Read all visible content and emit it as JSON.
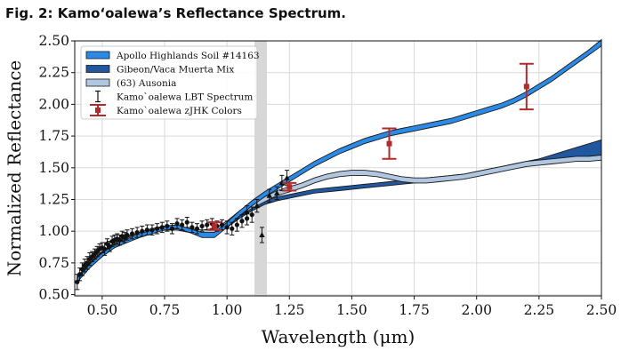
{
  "figure_title": "Fig. 2: Kamoʻoalewa’s Reflectance Spectrum.",
  "chart_data": {
    "type": "line",
    "xlabel": "Wavelength (μm)",
    "ylabel": "Normalized Reflectance",
    "xlim": [
      0.39,
      2.5
    ],
    "ylim": [
      0.49,
      2.5
    ],
    "xticks": [
      "0.50",
      "0.75",
      "1.00",
      "1.25",
      "1.50",
      "1.75",
      "2.00",
      "2.25",
      "2.50"
    ],
    "yticks": [
      "0.50",
      "0.75",
      "1.00",
      "1.25",
      "1.50",
      "1.75",
      "2.00",
      "2.25",
      "2.50"
    ],
    "grid": true,
    "legend_position": "top-left",
    "shaded_band": [
      1.11,
      1.16
    ],
    "colors": {
      "apollo": "#2b8ae6",
      "gibeon": "#20579e",
      "ausonia": "#b1c6df",
      "lbt": "#111111",
      "zjhk": "#b22a2a",
      "band": "#d7d7d7",
      "grid": "#d9d9d9"
    },
    "series": [
      {
        "name": "Apollo Highlands Soil #14163",
        "kind": "band",
        "x": [
          0.4,
          0.45,
          0.5,
          0.55,
          0.6,
          0.65,
          0.7,
          0.75,
          0.8,
          0.85,
          0.9,
          0.95,
          1.0,
          1.05,
          1.1,
          1.15,
          1.2,
          1.25,
          1.3,
          1.35,
          1.4,
          1.45,
          1.5,
          1.55,
          1.6,
          1.65,
          1.7,
          1.75,
          1.8,
          1.85,
          1.9,
          1.95,
          2.0,
          2.05,
          2.1,
          2.15,
          2.2,
          2.25,
          2.3,
          2.35,
          2.4,
          2.45,
          2.5
        ],
        "lower": [
          0.6,
          0.71,
          0.8,
          0.87,
          0.91,
          0.95,
          0.98,
          1.01,
          1.02,
          0.99,
          0.95,
          0.95,
          1.03,
          1.12,
          1.2,
          1.27,
          1.33,
          1.39,
          1.45,
          1.51,
          1.56,
          1.61,
          1.65,
          1.69,
          1.72,
          1.75,
          1.77,
          1.79,
          1.81,
          1.83,
          1.85,
          1.88,
          1.91,
          1.94,
          1.97,
          2.01,
          2.06,
          2.12,
          2.18,
          2.25,
          2.32,
          2.39,
          2.46
        ],
        "upper": [
          0.63,
          0.74,
          0.83,
          0.9,
          0.94,
          0.98,
          1.01,
          1.04,
          1.05,
          1.02,
          0.99,
          0.99,
          1.07,
          1.16,
          1.24,
          1.31,
          1.37,
          1.43,
          1.49,
          1.55,
          1.6,
          1.65,
          1.69,
          1.73,
          1.76,
          1.79,
          1.81,
          1.83,
          1.85,
          1.87,
          1.89,
          1.92,
          1.95,
          1.98,
          2.01,
          2.05,
          2.1,
          2.16,
          2.22,
          2.29,
          2.36,
          2.43,
          2.51
        ]
      },
      {
        "name": "Gibeon/Vaca Muerta Mix",
        "kind": "band",
        "x": [
          0.4,
          0.45,
          0.5,
          0.55,
          0.6,
          0.65,
          0.7,
          0.75,
          0.8,
          0.85,
          0.9,
          0.95,
          1.0,
          1.05,
          1.1,
          1.15,
          1.2,
          1.25,
          1.3,
          1.35,
          1.4,
          1.45,
          1.5,
          1.55,
          1.6,
          1.65,
          1.7,
          1.75,
          1.8,
          1.85,
          1.9,
          1.95,
          2.0,
          2.05,
          2.1,
          2.15,
          2.2,
          2.25,
          2.3,
          2.35,
          2.4,
          2.45,
          2.5
        ],
        "lower": [
          0.61,
          0.72,
          0.81,
          0.88,
          0.93,
          0.96,
          0.99,
          1.01,
          1.01,
          0.99,
          0.97,
          0.98,
          1.03,
          1.1,
          1.16,
          1.21,
          1.24,
          1.26,
          1.28,
          1.3,
          1.31,
          1.32,
          1.33,
          1.34,
          1.35,
          1.36,
          1.37,
          1.38,
          1.39,
          1.4,
          1.41,
          1.42,
          1.44,
          1.46,
          1.48,
          1.5,
          1.52,
          1.54,
          1.56,
          1.57,
          1.58,
          1.59,
          1.6
        ],
        "upper": [
          0.64,
          0.75,
          0.84,
          0.91,
          0.96,
          0.99,
          1.02,
          1.04,
          1.04,
          1.02,
          1.0,
          1.01,
          1.06,
          1.13,
          1.19,
          1.24,
          1.27,
          1.29,
          1.31,
          1.33,
          1.34,
          1.35,
          1.36,
          1.37,
          1.38,
          1.39,
          1.4,
          1.41,
          1.42,
          1.43,
          1.44,
          1.45,
          1.47,
          1.49,
          1.51,
          1.53,
          1.55,
          1.57,
          1.6,
          1.63,
          1.66,
          1.69,
          1.72
        ]
      },
      {
        "name": "(63) Ausonia",
        "kind": "band",
        "x": [
          0.4,
          0.45,
          0.5,
          0.55,
          0.6,
          0.65,
          0.7,
          0.75,
          0.8,
          0.85,
          0.9,
          0.95,
          1.0,
          1.05,
          1.1,
          1.15,
          1.2,
          1.25,
          1.3,
          1.35,
          1.4,
          1.45,
          1.5,
          1.55,
          1.6,
          1.65,
          1.7,
          1.75,
          1.8,
          1.85,
          1.9,
          1.95,
          2.0,
          2.05,
          2.1,
          2.15,
          2.2,
          2.25,
          2.3,
          2.35,
          2.4,
          2.45,
          2.5
        ],
        "lower": [
          0.6,
          0.71,
          0.8,
          0.88,
          0.92,
          0.96,
          0.99,
          1.01,
          1.01,
          0.99,
          0.98,
          0.99,
          1.04,
          1.12,
          1.18,
          1.23,
          1.28,
          1.31,
          1.34,
          1.38,
          1.41,
          1.43,
          1.44,
          1.44,
          1.43,
          1.41,
          1.39,
          1.38,
          1.38,
          1.39,
          1.4,
          1.41,
          1.43,
          1.45,
          1.47,
          1.49,
          1.51,
          1.52,
          1.53,
          1.54,
          1.55,
          1.55,
          1.56
        ],
        "upper": [
          0.63,
          0.74,
          0.83,
          0.91,
          0.95,
          0.99,
          1.02,
          1.04,
          1.04,
          1.02,
          1.01,
          1.02,
          1.08,
          1.16,
          1.22,
          1.27,
          1.32,
          1.35,
          1.38,
          1.42,
          1.45,
          1.47,
          1.48,
          1.48,
          1.47,
          1.45,
          1.43,
          1.42,
          1.42,
          1.43,
          1.44,
          1.45,
          1.47,
          1.49,
          1.51,
          1.53,
          1.55,
          1.56,
          1.57,
          1.58,
          1.59,
          1.59,
          1.6
        ]
      },
      {
        "name": "Kamo`oalewa LBT Spectrum",
        "kind": "points",
        "x": [
          0.4,
          0.41,
          0.42,
          0.43,
          0.44,
          0.45,
          0.46,
          0.47,
          0.48,
          0.49,
          0.5,
          0.51,
          0.52,
          0.53,
          0.54,
          0.55,
          0.56,
          0.57,
          0.58,
          0.59,
          0.6,
          0.62,
          0.64,
          0.66,
          0.68,
          0.7,
          0.72,
          0.74,
          0.76,
          0.78,
          0.8,
          0.82,
          0.84,
          0.86,
          0.88,
          0.9,
          0.92,
          0.94,
          0.96,
          0.98,
          1.0,
          1.02,
          1.04,
          1.06,
          1.08,
          1.1
        ],
        "y": [
          0.6,
          0.66,
          0.7,
          0.73,
          0.75,
          0.78,
          0.8,
          0.82,
          0.84,
          0.86,
          0.87,
          0.86,
          0.9,
          0.88,
          0.92,
          0.93,
          0.94,
          0.93,
          0.96,
          0.95,
          0.97,
          0.98,
          0.99,
          1.0,
          1.01,
          1.01,
          1.02,
          1.03,
          1.04,
          1.02,
          1.06,
          1.05,
          1.07,
          1.03,
          1.02,
          1.04,
          1.05,
          1.06,
          1.04,
          1.05,
          1.03,
          1.02,
          1.05,
          1.08,
          1.1,
          1.13
        ],
        "err": [
          0.06,
          0.05,
          0.05,
          0.05,
          0.05,
          0.05,
          0.04,
          0.04,
          0.04,
          0.04,
          0.04,
          0.05,
          0.04,
          0.04,
          0.04,
          0.04,
          0.04,
          0.04,
          0.04,
          0.04,
          0.04,
          0.04,
          0.04,
          0.04,
          0.04,
          0.04,
          0.04,
          0.04,
          0.04,
          0.04,
          0.04,
          0.04,
          0.04,
          0.04,
          0.04,
          0.04,
          0.04,
          0.04,
          0.04,
          0.04,
          0.05,
          0.05,
          0.05,
          0.05,
          0.05,
          0.06
        ]
      },
      {
        "name": "Kamo`oalewa LBT Spectrum (NIR)",
        "kind": "triangles",
        "x": [
          1.08,
          1.12,
          1.14,
          1.17,
          1.2,
          1.22,
          1.24
        ],
        "y": [
          1.15,
          1.2,
          0.97,
          1.28,
          1.3,
          1.38,
          1.42
        ],
        "err": [
          0.05,
          0.05,
          0.06,
          0.05,
          0.05,
          0.06,
          0.06
        ]
      },
      {
        "name": "Kamo`oalewa zJHK Colors",
        "kind": "squares",
        "x": [
          0.95,
          1.25,
          1.65,
          2.2
        ],
        "y": [
          1.04,
          1.35,
          1.69,
          2.14
        ],
        "err": [
          0.03,
          0.03,
          0.12,
          0.18
        ]
      }
    ],
    "legend": [
      {
        "label": "Apollo Highlands Soil #14163",
        "symbol": "band",
        "series": "apollo"
      },
      {
        "label": "Gibeon/Vaca Muerta Mix",
        "symbol": "band",
        "series": "gibeon"
      },
      {
        "label": "(63) Ausonia",
        "symbol": "band",
        "series": "ausonia"
      },
      {
        "label": "Kamo`oalewa LBT Spectrum",
        "symbol": "errorbar",
        "series": "lbt"
      },
      {
        "label": "Kamo`oalewa zJHK Colors",
        "symbol": "errorbar-square",
        "series": "zjhk"
      }
    ]
  }
}
